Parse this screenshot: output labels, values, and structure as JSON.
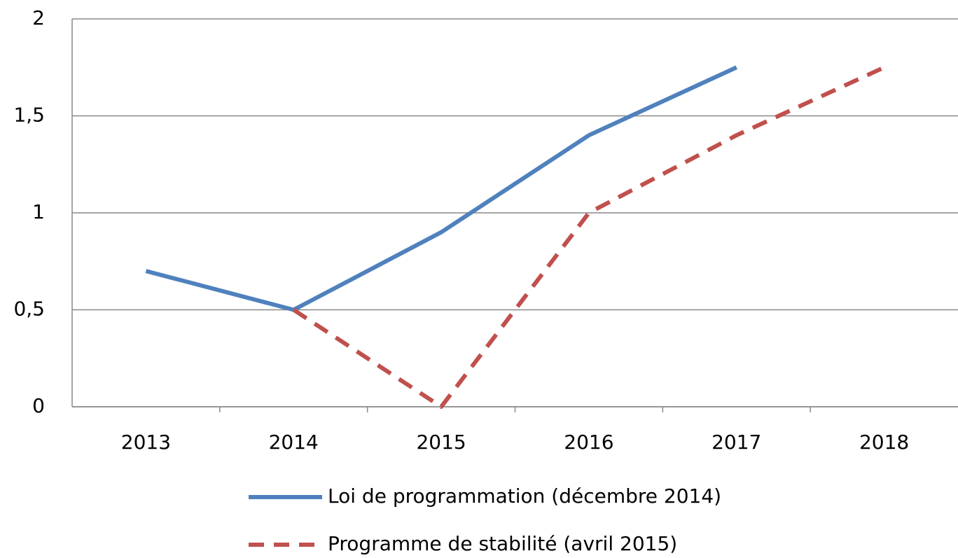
{
  "chart_data": {
    "type": "line",
    "categories": [
      "2013",
      "2014",
      "2015",
      "2016",
      "2017",
      "2018"
    ],
    "series": [
      {
        "name": "Loi de programmation (décembre 2014)",
        "color": "#4f81bd",
        "dash": false,
        "values": [
          0.7,
          0.5,
          0.9,
          1.4,
          1.75,
          null
        ]
      },
      {
        "name": "Programme de stabilité (avril 2015)",
        "color": "#c0504d",
        "dash": true,
        "values": [
          null,
          0.5,
          0,
          1.0,
          1.4,
          1.75
        ]
      }
    ],
    "ylim": [
      0,
      2
    ],
    "yticks": [
      0,
      {
        "value": 0.5,
        "label": "0,5"
      },
      1,
      {
        "value": 1.5,
        "label": "1,5"
      },
      2
    ],
    "grid": true,
    "legend": "bottom"
  }
}
